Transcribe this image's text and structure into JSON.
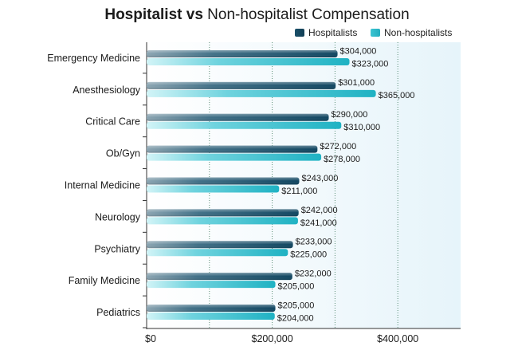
{
  "chart_data": {
    "type": "bar",
    "orientation": "horizontal",
    "title_bold": "Hospitalist vs",
    "title_rest": "Non-hospitalist Compensation",
    "categories": [
      "Emergency Medicine",
      "Anesthesiology",
      "Critical Care",
      "Ob/Gyn",
      "Internal Medicine",
      "Neurology",
      "Psychiatry",
      "Family Medicine",
      "Pediatrics"
    ],
    "series": [
      {
        "name": "Hospitalists",
        "color": "#1e5f7d",
        "values": [
          304000,
          301000,
          290000,
          272000,
          243000,
          242000,
          233000,
          232000,
          205000
        ],
        "labels": [
          "$304,000",
          "$301,000",
          "$290,000",
          "$272,000",
          "$243,000",
          "$242,000",
          "$233,000",
          "$232,000",
          "$205,000"
        ]
      },
      {
        "name": "Non-hospitalists",
        "color": "#2bb8c7",
        "values": [
          323000,
          365000,
          310000,
          278000,
          211000,
          241000,
          225000,
          205000,
          204000
        ],
        "labels": [
          "$323,000",
          "$365,000",
          "$310,000",
          "$278,000",
          "$211,000",
          "$241,000",
          "$225,000",
          "$205,000",
          "$204,000"
        ]
      }
    ],
    "xlim": [
      0,
      500000
    ],
    "xticks": [
      0,
      200000,
      400000
    ],
    "xtick_labels": [
      "$0",
      "$200,000",
      "$400,000"
    ],
    "gridlines": [
      100000,
      200000,
      300000,
      400000
    ],
    "legend_position": "top-right",
    "colors": {
      "plot_bg": "#eaf6fb",
      "hosp_dark": "#134a63",
      "hosp_light": "#7d98a6",
      "non_dark": "#22aebf",
      "non_light": "#bff0f4",
      "grid": "#5d8f7a",
      "label_text": "#1b1b1b"
    }
  }
}
